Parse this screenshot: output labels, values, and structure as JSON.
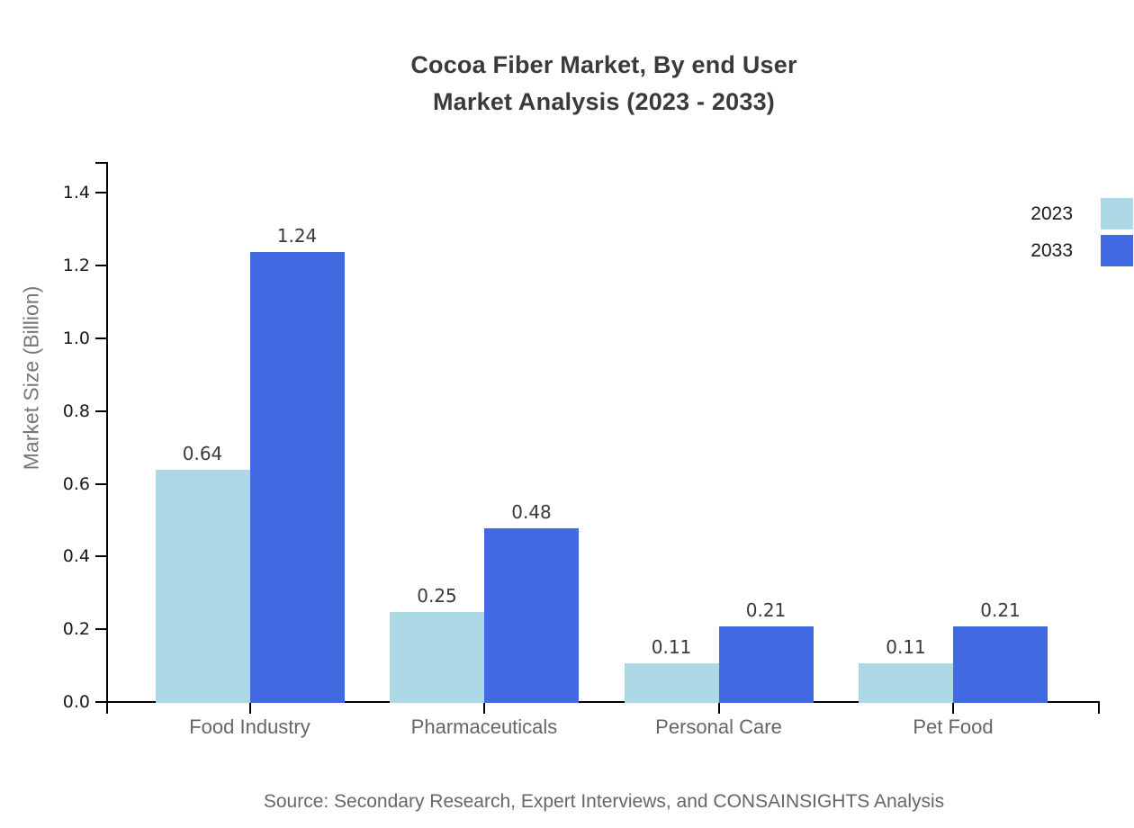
{
  "chart": {
    "title_line1": "Cocoa Fiber Market, By end User",
    "title_line2": "Market Analysis (2023 - 2033)",
    "source": "Source: Secondary Research, Expert Interviews, and CONSAINSIGHTS Analysis"
  },
  "chart_data": {
    "type": "bar",
    "title": "Cocoa Fiber Market, By end User Market Analysis (2023 - 2033)",
    "categories": [
      "Food Industry",
      "Pharmaceuticals",
      "Personal Care",
      "Pet Food"
    ],
    "series": [
      {
        "name": "2023",
        "color": "#ADD8E6",
        "values": [
          0.64,
          0.25,
          0.11,
          0.11
        ]
      },
      {
        "name": "2033",
        "color": "#4169E1",
        "values": [
          1.24,
          0.48,
          0.21,
          0.21
        ]
      }
    ],
    "value_labels": [
      "0.64",
      "1.24",
      "0.25",
      "0.48",
      "0.11",
      "0.21",
      "0.11",
      "0.21"
    ],
    "xlabel": "",
    "ylabel": "Market Size (Billion)",
    "ylim": [
      0,
      1.4875
    ],
    "yticks": [
      "0.0",
      "0.2",
      "0.4",
      "0.6",
      "0.8",
      "1.0",
      "1.2",
      "1.4"
    ],
    "grid": false,
    "legend_position": "top-right outside plot, swatches flush with right edge",
    "background": "#ffffff"
  },
  "colors": {
    "axis": "#000000",
    "tick_label": "#1a1a1a",
    "category_label": "#666666",
    "value_label": "#3a3a3a",
    "title": "#3a3a3a",
    "ylabel": "#777777",
    "source": "#666666",
    "series_2023": "#ADD8E6",
    "series_2033": "#4169E1"
  }
}
